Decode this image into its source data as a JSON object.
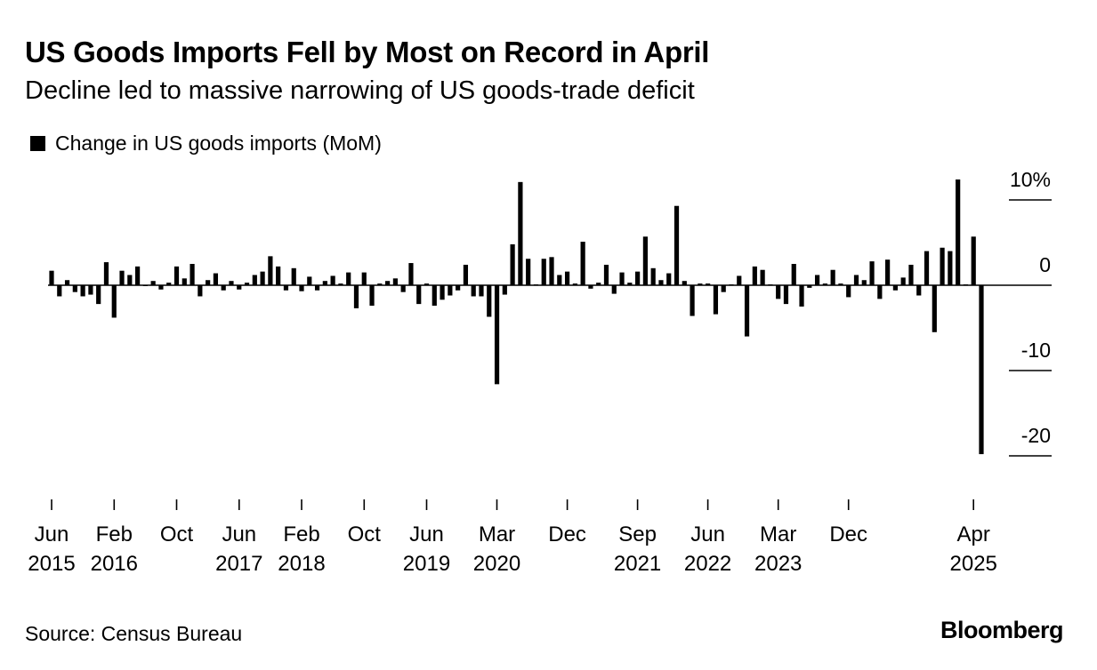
{
  "header": {
    "title": "US Goods Imports Fell by Most on Record in April",
    "subtitle": "Decline led to massive narrowing of US goods-trade deficit"
  },
  "footer": {
    "source": "Source: Census Bureau",
    "brand": "Bloomberg"
  },
  "chart_data": {
    "type": "bar",
    "series": [
      {
        "name": "Change in US goods imports (MoM)",
        "color": "#000000",
        "values": [
          1.7,
          -1.3,
          0.6,
          -0.8,
          -1.3,
          -1.1,
          -2.2,
          2.7,
          -3.8,
          1.7,
          1.2,
          2.2,
          -0.1,
          0.5,
          -0.5,
          0.3,
          2.2,
          0.8,
          2.5,
          -1.3,
          0.6,
          1.4,
          -0.6,
          0.5,
          -0.5,
          0.3,
          1.2,
          1.6,
          3.4,
          2.2,
          -0.6,
          2.0,
          -0.7,
          1.0,
          -0.6,
          0.5,
          1.1,
          0.2,
          1.5,
          -2.7,
          1.5,
          -2.4,
          0.2,
          0.5,
          0.8,
          -0.8,
          2.6,
          -2.2,
          0.2,
          -2.4,
          -1.7,
          -1.2,
          -0.6,
          2.4,
          -1.3,
          -1.3,
          -3.7,
          -11.6,
          -1.1,
          4.8,
          12.1,
          3.1,
          0.1,
          3.1,
          3.3,
          1.2,
          1.6,
          0.2,
          5.1,
          -0.4,
          0.3,
          2.4,
          -1.0,
          1.5,
          0.3,
          1.6,
          5.7,
          2.0,
          0.6,
          1.4,
          9.3,
          0.5,
          -3.6,
          0.2,
          0.2,
          -3.4,
          -0.8,
          0.1,
          1.1,
          -6.0,
          2.2,
          1.8,
          0.1,
          -1.6,
          -2.2,
          2.5,
          -2.5,
          -0.3,
          1.2,
          0.2,
          1.8,
          0.2,
          -1.4,
          1.2,
          0.6,
          2.8,
          -1.6,
          3.0,
          -0.6,
          0.9,
          2.4,
          -1.2,
          4.0,
          -5.5,
          4.4,
          4.0,
          12.4,
          0.1,
          5.7,
          -19.8
        ]
      }
    ],
    "x_start": "Jun 2015",
    "x_end": "Apr 2025",
    "frequency": "monthly",
    "x_ticks": [
      {
        "line1": "Jun",
        "line2": "2015",
        "index": 0
      },
      {
        "line1": "Feb",
        "line2": "2016",
        "index": 8
      },
      {
        "line1": "Oct",
        "line2": "",
        "index": 16
      },
      {
        "line1": "Jun",
        "line2": "2017",
        "index": 24
      },
      {
        "line1": "Feb",
        "line2": "2018",
        "index": 32
      },
      {
        "line1": "Oct",
        "line2": "",
        "index": 40
      },
      {
        "line1": "Jun",
        "line2": "2019",
        "index": 48
      },
      {
        "line1": "Mar",
        "line2": "2020",
        "index": 57
      },
      {
        "line1": "Dec",
        "line2": "",
        "index": 66
      },
      {
        "line1": "Sep",
        "line2": "2021",
        "index": 75
      },
      {
        "line1": "Jun",
        "line2": "2022",
        "index": 84
      },
      {
        "line1": "Mar",
        "line2": "2023",
        "index": 93
      },
      {
        "line1": "Dec",
        "line2": "",
        "index": 102
      },
      {
        "line1": "Apr",
        "line2": "2025",
        "index": 118
      }
    ],
    "y_ticks": [
      {
        "value": 10,
        "label": "10%"
      },
      {
        "value": 0,
        "label": "0"
      },
      {
        "value": -10,
        "label": "-10"
      },
      {
        "value": -20,
        "label": "-20"
      }
    ],
    "ylim": [
      -20,
      10
    ],
    "y_axis_position": "right",
    "grid": false
  }
}
